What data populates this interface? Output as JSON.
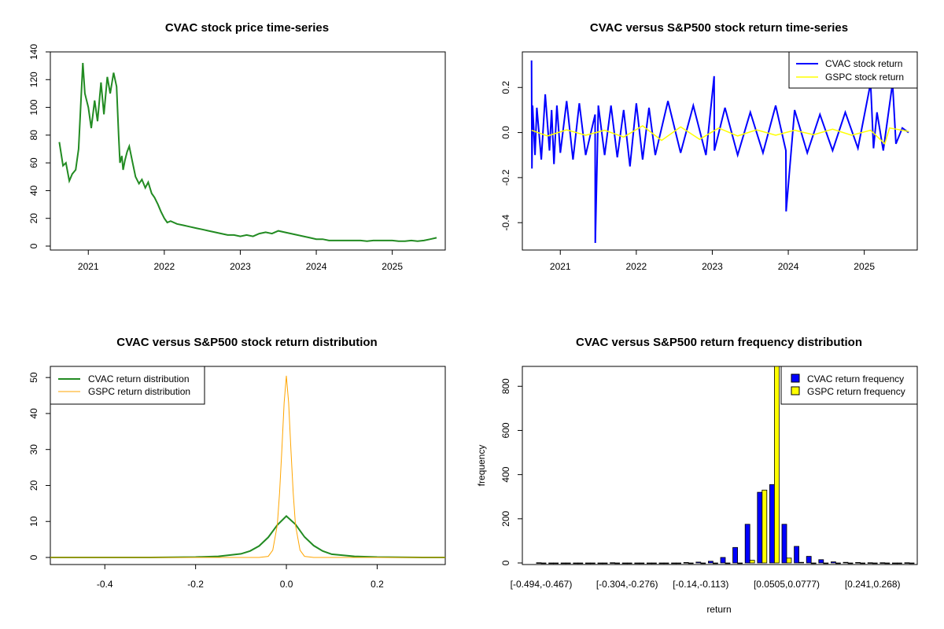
{
  "chart_data": [
    {
      "type": "line",
      "title": "CVAC stock price time-series",
      "xlabel": "",
      "ylabel": "",
      "x_ticks": [
        "2021",
        "2022",
        "2023",
        "2024",
        "2025"
      ],
      "y_ticks": [
        "0",
        "20",
        "40",
        "60",
        "80",
        "100",
        "120",
        "140"
      ],
      "ylim": [
        0,
        140
      ],
      "xlim": [
        "2020-08",
        "2025-08"
      ],
      "colors": {
        "price": "#228B22"
      },
      "series": [
        {
          "x": [
            "2020-08-14",
            "2020-09-01",
            "2020-09-15",
            "2020-10-01",
            "2020-10-15",
            "2020-11-01",
            "2020-11-15",
            "2020-11-25",
            "2020-12-05",
            "2020-12-15",
            "2021-01-01",
            "2021-01-15",
            "2021-02-01",
            "2021-02-15",
            "2021-03-01",
            "2021-03-15",
            "2021-04-01",
            "2021-04-15",
            "2021-05-01",
            "2021-05-15",
            "2021-05-25",
            "2021-06-01",
            "2021-06-10",
            "2021-06-16",
            "2021-06-25",
            "2021-07-05",
            "2021-07-15",
            "2021-08-01",
            "2021-08-15",
            "2021-09-01",
            "2021-09-15",
            "2021-10-01",
            "2021-10-15",
            "2021-11-01",
            "2021-11-15",
            "2021-12-01",
            "2021-12-15",
            "2022-01-01",
            "2022-01-15",
            "2022-02-01",
            "2022-03-01",
            "2022-04-01",
            "2022-05-01",
            "2022-06-01",
            "2022-07-01",
            "2022-08-01",
            "2022-09-01",
            "2022-10-01",
            "2022-11-01",
            "2022-12-01",
            "2023-01-01",
            "2023-02-01",
            "2023-03-01",
            "2023-04-01",
            "2023-05-01",
            "2023-06-01",
            "2023-07-01",
            "2023-08-01",
            "2023-09-01",
            "2023-10-01",
            "2023-11-01",
            "2023-12-01",
            "2024-01-01",
            "2024-02-01",
            "2024-03-01",
            "2024-04-01",
            "2024-05-01",
            "2024-06-01",
            "2024-07-01",
            "2024-08-01",
            "2024-09-01",
            "2024-10-01",
            "2024-11-01",
            "2024-12-01",
            "2025-01-01",
            "2025-02-01",
            "2025-03-01",
            "2025-04-01",
            "2025-05-01",
            "2025-06-01",
            "2025-07-01",
            "2025-08-01"
          ],
          "y": [
            75,
            58,
            60,
            47,
            52,
            55,
            70,
            100,
            132,
            110,
            100,
            85,
            105,
            90,
            118,
            95,
            122,
            110,
            125,
            115,
            80,
            60,
            65,
            55,
            62,
            68,
            72,
            60,
            50,
            45,
            48,
            42,
            46,
            38,
            35,
            30,
            25,
            20,
            17,
            18,
            16,
            15,
            14,
            13,
            12,
            11,
            10,
            9,
            8,
            8,
            7,
            8,
            7,
            9,
            10,
            9,
            11,
            10,
            9,
            8,
            7,
            6,
            5,
            5,
            4,
            4,
            4,
            4,
            4,
            4,
            3.5,
            4,
            4,
            4,
            4,
            3.5,
            3.5,
            4,
            3.5,
            4,
            5,
            6
          ]
        }
      ]
    },
    {
      "type": "line",
      "title": "CVAC versus S&P500 stock return time-series",
      "xlabel": "",
      "ylabel": "",
      "x_ticks": [
        "2021",
        "2022",
        "2023",
        "2024",
        "2025"
      ],
      "y_ticks": [
        "-0.4",
        "-0.2",
        "0.0",
        "0.2"
      ],
      "ylim": [
        -0.49,
        0.33
      ],
      "xlim": [
        "2020-08",
        "2025-08"
      ],
      "legend": "top-right",
      "colors": {
        "cvac": "#0000FF",
        "gspc": "#FFFF00"
      },
      "series": [
        {
          "name": "CVAC stock return",
          "x": [
            "2020-08-15",
            "2020-08-17",
            "2020-08-20",
            "2020-09-01",
            "2020-09-10",
            "2020-10-01",
            "2020-10-20",
            "2020-11-10",
            "2020-11-20",
            "2020-12-01",
            "2020-12-15",
            "2021-01-01",
            "2021-02-01",
            "2021-03-01",
            "2021-04-01",
            "2021-05-01",
            "2021-06-16",
            "2021-06-17",
            "2021-07-01",
            "2021-08-01",
            "2021-09-01",
            "2021-10-01",
            "2021-11-01",
            "2021-12-01",
            "2022-01-01",
            "2022-02-01",
            "2022-03-01",
            "2022-04-01",
            "2022-06-01",
            "2022-08-01",
            "2022-10-01",
            "2022-12-01",
            "2023-01-10",
            "2023-01-11",
            "2023-03-01",
            "2023-05-01",
            "2023-07-01",
            "2023-09-01",
            "2023-11-01",
            "2023-12-20",
            "2023-12-21",
            "2024-02-01",
            "2024-04-01",
            "2024-06-01",
            "2024-08-01",
            "2024-10-01",
            "2024-12-01",
            "2025-02-01",
            "2025-02-15",
            "2025-03-01",
            "2025-04-01",
            "2025-05-15",
            "2025-06-01",
            "2025-07-01",
            "2025-08-01"
          ],
          "y": [
            0.32,
            -0.16,
            0.12,
            -0.1,
            0.11,
            -0.12,
            0.17,
            -0.08,
            0.1,
            -0.14,
            0.12,
            -0.09,
            0.14,
            -0.12,
            0.13,
            -0.1,
            0.08,
            -0.49,
            0.12,
            -0.1,
            0.12,
            -0.11,
            0.1,
            -0.15,
            0.13,
            -0.12,
            0.11,
            -0.1,
            0.14,
            -0.09,
            0.12,
            -0.1,
            0.25,
            -0.08,
            0.11,
            -0.1,
            0.09,
            -0.09,
            0.12,
            -0.08,
            -0.35,
            0.1,
            -0.09,
            0.08,
            -0.08,
            0.09,
            -0.07,
            0.22,
            -0.07,
            0.09,
            -0.08,
            0.22,
            -0.05,
            0.02,
            0.0
          ]
        },
        {
          "name": "GSPC stock return",
          "x": [
            "2020-08-15",
            "2020-11-01",
            "2021-02-01",
            "2021-05-01",
            "2021-08-01",
            "2021-11-01",
            "2022-02-01",
            "2022-05-01",
            "2022-08-01",
            "2022-11-01",
            "2023-02-01",
            "2023-05-01",
            "2023-08-01",
            "2023-11-01",
            "2024-02-01",
            "2024-05-01",
            "2024-08-01",
            "2024-11-01",
            "2025-02-01",
            "2025-04-08",
            "2025-05-01",
            "2025-08-01"
          ],
          "y": [
            0.01,
            -0.015,
            0.012,
            -0.012,
            0.01,
            -0.02,
            0.03,
            -0.035,
            0.025,
            -0.03,
            0.02,
            -0.015,
            0.012,
            -0.012,
            0.01,
            -0.01,
            0.015,
            -0.012,
            0.01,
            -0.05,
            0.02,
            0.005
          ]
        }
      ]
    },
    {
      "type": "line",
      "title": "CVAC versus S&P500 stock return distribution",
      "xlabel": "",
      "ylabel": "",
      "x_ticks": [
        "-0.4",
        "-0.2",
        "0.0",
        "0.2"
      ],
      "y_ticks": [
        "0",
        "10",
        "20",
        "30",
        "40",
        "50"
      ],
      "xlim": [
        -0.52,
        0.35
      ],
      "ylim": [
        0,
        52
      ],
      "legend": "top-left",
      "colors": {
        "cvac": "#228B22",
        "gspc": "#FFA500"
      },
      "series": [
        {
          "name": "CVAC return distribution",
          "x": [
            -0.52,
            -0.3,
            -0.2,
            -0.15,
            -0.1,
            -0.08,
            -0.06,
            -0.04,
            -0.02,
            0.0,
            0.02,
            0.04,
            0.06,
            0.08,
            0.1,
            0.15,
            0.2,
            0.3,
            0.35
          ],
          "y": [
            0,
            0,
            0.1,
            0.3,
            1.0,
            1.8,
            3.2,
            5.6,
            9.0,
            11.5,
            9.2,
            5.7,
            3.3,
            1.8,
            0.9,
            0.3,
            0.1,
            0,
            0
          ]
        },
        {
          "name": "GSPC return distribution",
          "x": [
            -0.52,
            -0.06,
            -0.04,
            -0.03,
            -0.02,
            -0.015,
            -0.01,
            -0.005,
            0.0,
            0.005,
            0.01,
            0.015,
            0.02,
            0.03,
            0.04,
            0.06,
            0.35
          ],
          "y": [
            0,
            0,
            0.3,
            2.0,
            9.0,
            18.0,
            30.0,
            43.0,
            50.5,
            43.0,
            30.0,
            18.0,
            9.0,
            2.0,
            0.3,
            0,
            0
          ]
        }
      ]
    },
    {
      "type": "bar",
      "title": "CVAC versus S&P500 return frequency distribution",
      "xlabel": "return",
      "ylabel": "frequency",
      "x_tick_labels": [
        "[-0.494,-0.467)",
        "[-0.304,-0.276)",
        "[-0.14,-0.113)",
        "[0.0505,0.0777)",
        "[0.241,0.268)"
      ],
      "y_ticks": [
        "0",
        "200",
        "400",
        "600",
        "800"
      ],
      "ylim": [
        0,
        890
      ],
      "legend": "top-right",
      "colors": {
        "cvac": "#0000FF",
        "gspc": "#FFFF00"
      },
      "series": [
        {
          "name": "CVAC return frequency",
          "values": [
            1,
            0,
            0,
            0,
            0,
            0,
            1,
            0,
            0,
            0,
            0,
            0,
            2,
            4,
            8,
            25,
            70,
            175,
            320,
            355,
            175,
            75,
            30,
            15,
            5,
            3,
            2,
            1,
            1,
            0,
            1
          ]
        },
        {
          "name": "GSPC return frequency",
          "values": [
            0,
            0,
            0,
            0,
            0,
            0,
            0,
            0,
            0,
            0,
            0,
            0,
            0,
            0,
            0,
            0,
            0,
            12,
            330,
            890,
            22,
            3,
            0,
            0,
            0,
            0,
            0,
            0,
            0,
            0,
            0
          ]
        }
      ]
    }
  ]
}
